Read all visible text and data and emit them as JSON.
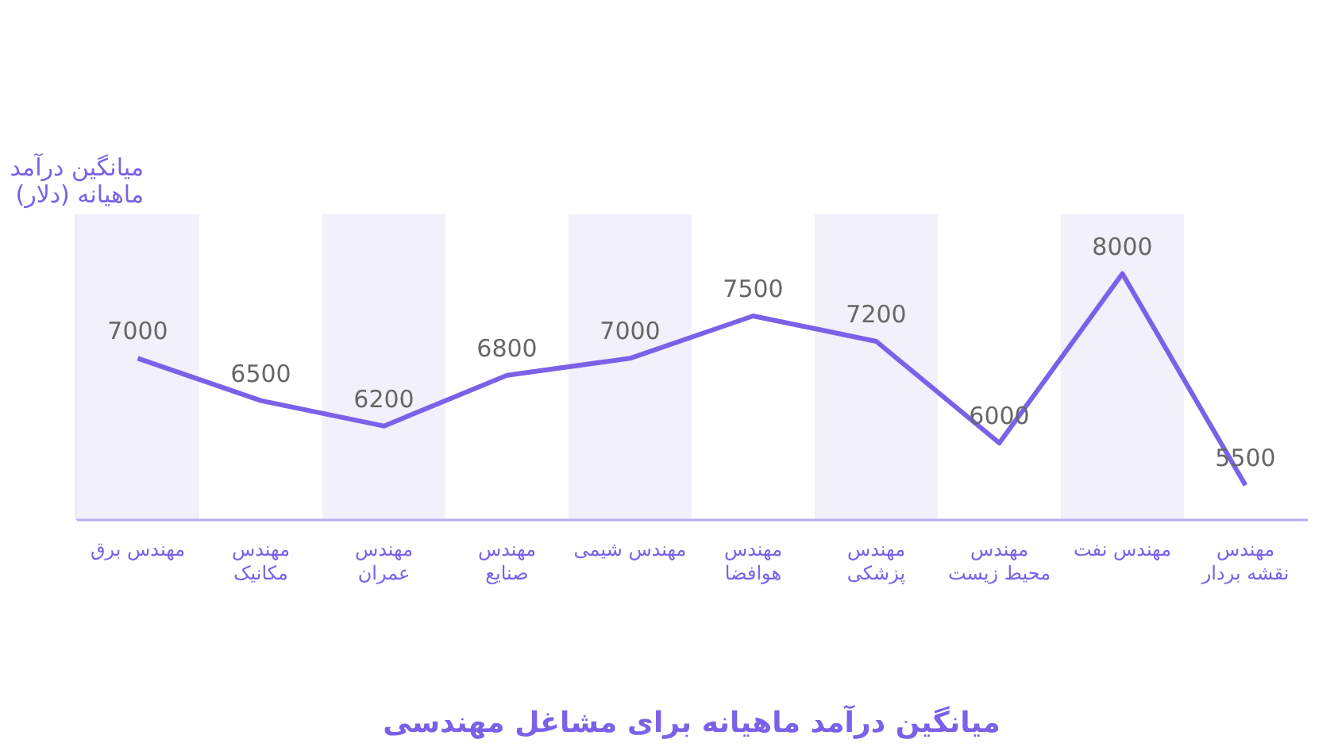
{
  "chart_data": {
    "type": "line",
    "title": "میانگین درآمد ماهیانه برای مشاغل مهندسی",
    "ylabel": "میانگین درآمد ماهیانه (دلار)",
    "categories": [
      "مهندس برق",
      "مهندس مکانیک",
      "مهندس عمران",
      "مهندس صنایع",
      "مهندس شیمی",
      "مهندس هوافضا",
      "مهندس پزشکی",
      "مهندس محیط زیست",
      "مهندس نفت",
      "مهندس نقشه بردار"
    ],
    "series": [
      {
        "color": "#7b61e8",
        "values": [
          7000,
          6500,
          6200,
          6800,
          7000,
          7500,
          7200,
          6000,
          8000,
          5500
        ]
      }
    ],
    "ylim": [
      5100,
      8700
    ],
    "tick_labels": "x",
    "data_labels": true,
    "grid": false,
    "marker": "none",
    "line_style": "solid",
    "bands": [
      {
        "axis": "x",
        "from": "مهندس برق",
        "to": "مهندس برق",
        "color": "#f1f0fb"
      },
      {
        "axis": "x",
        "from": "مهندس عمران",
        "to": "مهندس عمران",
        "color": "#f1f0fb"
      },
      {
        "axis": "x",
        "from": "مهندس شیمی",
        "to": "مهندس شیمی",
        "color": "#f1f0fb"
      },
      {
        "axis": "x",
        "from": "مهندس پزشکی",
        "to": "مهندس پزشکی",
        "color": "#f1f0fb"
      },
      {
        "axis": "x",
        "from": "مهندس نفت",
        "to": "مهندس نفت",
        "color": "#f1f0fb"
      }
    ]
  }
}
